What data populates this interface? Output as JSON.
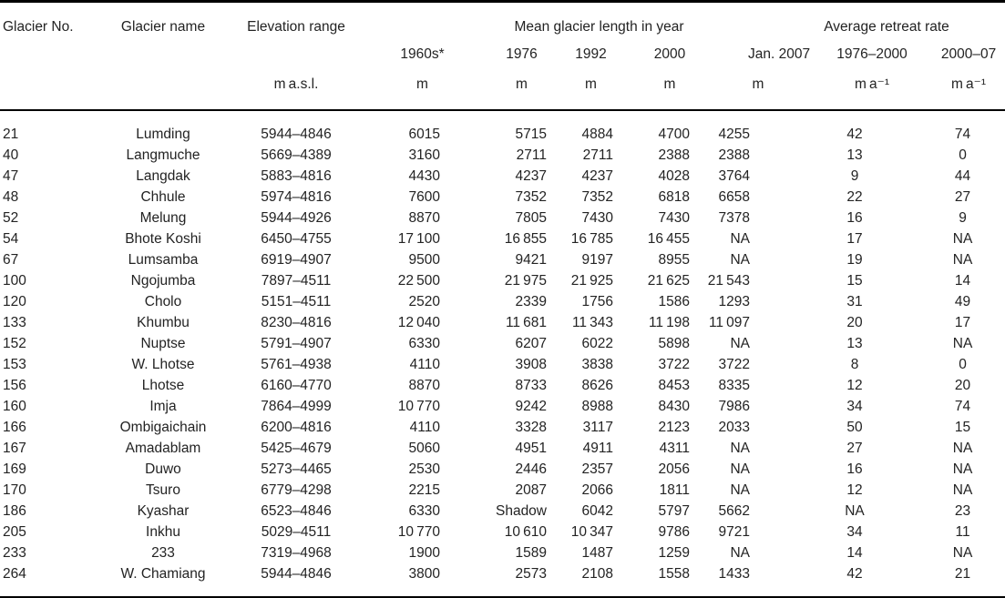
{
  "table": {
    "header": {
      "glacier_no": "Glacier No.",
      "glacier_name": "Glacier name",
      "elevation_range": "Elevation range",
      "length_group": "Mean glacier length in year",
      "retreat_group": "Average retreat rate",
      "years": [
        "1960s*",
        "1976",
        "1992",
        "2000",
        "Jan. 2007"
      ],
      "periods": [
        "1976–2000",
        "2000–07"
      ],
      "unit_elevation": "m a.s.l.",
      "unit_length": "m",
      "unit_retreat": "m a⁻¹"
    },
    "rows": [
      {
        "no": "21",
        "name": "Lumding",
        "elevation": "5944–4846",
        "lengths": [
          "6015",
          "5715",
          "4884",
          "4700",
          "4255"
        ],
        "retreat": [
          "42",
          "74"
        ]
      },
      {
        "no": "40",
        "name": "Langmuche",
        "elevation": "5669–4389",
        "lengths": [
          "3160",
          "2711",
          "2711",
          "2388",
          "2388"
        ],
        "retreat": [
          "13",
          "0"
        ]
      },
      {
        "no": "47",
        "name": "Langdak",
        "elevation": "5883–4816",
        "lengths": [
          "4430",
          "4237",
          "4237",
          "4028",
          "3764"
        ],
        "retreat": [
          "9",
          "44"
        ]
      },
      {
        "no": "48",
        "name": "Chhule",
        "elevation": "5974–4816",
        "lengths": [
          "7600",
          "7352",
          "7352",
          "6818",
          "6658"
        ],
        "retreat": [
          "22",
          "27"
        ]
      },
      {
        "no": "52",
        "name": "Melung",
        "elevation": "5944–4926",
        "lengths": [
          "8870",
          "7805",
          "7430",
          "7430",
          "7378"
        ],
        "retreat": [
          "16",
          "9"
        ]
      },
      {
        "no": "54",
        "name": "Bhote Koshi",
        "elevation": "6450–4755",
        "lengths": [
          "17 100",
          "16 855",
          "16 785",
          "16 455",
          "NA"
        ],
        "retreat": [
          "17",
          "NA"
        ]
      },
      {
        "no": "67",
        "name": "Lumsamba",
        "elevation": "6919–4907",
        "lengths": [
          "9500",
          "9421",
          "9197",
          "8955",
          "NA"
        ],
        "retreat": [
          "19",
          "NA"
        ]
      },
      {
        "no": "100",
        "name": "Ngojumba",
        "elevation": "7897–4511",
        "lengths": [
          "22 500",
          "21 975",
          "21 925",
          "21 625",
          "21 543"
        ],
        "retreat": [
          "15",
          "14"
        ]
      },
      {
        "no": "120",
        "name": "Cholo",
        "elevation": "5151–4511",
        "lengths": [
          "2520",
          "2339",
          "1756",
          "1586",
          "1293"
        ],
        "retreat": [
          "31",
          "49"
        ]
      },
      {
        "no": "133",
        "name": "Khumbu",
        "elevation": "8230–4816",
        "lengths": [
          "12 040",
          "11 681",
          "11 343",
          "11 198",
          "11 097"
        ],
        "retreat": [
          "20",
          "17"
        ]
      },
      {
        "no": "152",
        "name": "Nuptse",
        "elevation": "5791–4907",
        "lengths": [
          "6330",
          "6207",
          "6022",
          "5898",
          "NA"
        ],
        "retreat": [
          "13",
          "NA"
        ]
      },
      {
        "no": "153",
        "name": "W. Lhotse",
        "elevation": "5761–4938",
        "lengths": [
          "4110",
          "3908",
          "3838",
          "3722",
          "3722"
        ],
        "retreat": [
          "8",
          "0"
        ]
      },
      {
        "no": "156",
        "name": "Lhotse",
        "elevation": "6160–4770",
        "lengths": [
          "8870",
          "8733",
          "8626",
          "8453",
          "8335"
        ],
        "retreat": [
          "12",
          "20"
        ]
      },
      {
        "no": "160",
        "name": "Imja",
        "elevation": "7864–4999",
        "lengths": [
          "10 770",
          "9242",
          "8988",
          "8430",
          "7986"
        ],
        "retreat": [
          "34",
          "74"
        ]
      },
      {
        "no": "166",
        "name": "Ombigaichain",
        "elevation": "6200–4816",
        "lengths": [
          "4110",
          "3328",
          "3117",
          "2123",
          "2033"
        ],
        "retreat": [
          "50",
          "15"
        ]
      },
      {
        "no": "167",
        "name": "Amadablam",
        "elevation": "5425–4679",
        "lengths": [
          "5060",
          "4951",
          "4911",
          "4311",
          "NA"
        ],
        "retreat": [
          "27",
          "NA"
        ]
      },
      {
        "no": "169",
        "name": "Duwo",
        "elevation": "5273–4465",
        "lengths": [
          "2530",
          "2446",
          "2357",
          "2056",
          "NA"
        ],
        "retreat": [
          "16",
          "NA"
        ]
      },
      {
        "no": "170",
        "name": "Tsuro",
        "elevation": "6779–4298",
        "lengths": [
          "2215",
          "2087",
          "2066",
          "1811",
          "NA"
        ],
        "retreat": [
          "12",
          "NA"
        ]
      },
      {
        "no": "186",
        "name": "Kyashar",
        "elevation": "6523–4846",
        "lengths": [
          "6330",
          "Shadow",
          "6042",
          "5797",
          "5662"
        ],
        "retreat": [
          "NA",
          "23"
        ]
      },
      {
        "no": "205",
        "name": "Inkhu",
        "elevation": "5029–4511",
        "lengths": [
          "10 770",
          "10 610",
          "10 347",
          "9786",
          "9721"
        ],
        "retreat": [
          "34",
          "11"
        ]
      },
      {
        "no": "233",
        "name": "233",
        "elevation": "7319–4968",
        "lengths": [
          "1900",
          "1589",
          "1487",
          "1259",
          "NA"
        ],
        "retreat": [
          "14",
          "NA"
        ]
      },
      {
        "no": "264",
        "name": "W. Chamiang",
        "elevation": "5944–4846",
        "lengths": [
          "3800",
          "2573",
          "2108",
          "1558",
          "1433"
        ],
        "retreat": [
          "42",
          "21"
        ]
      }
    ]
  },
  "colors": {
    "background": "#ffffff",
    "text": "#232323",
    "rule": "#000000"
  }
}
